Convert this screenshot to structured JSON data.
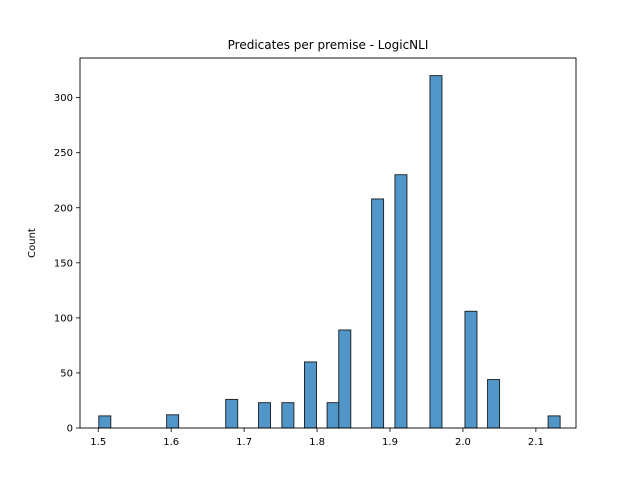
{
  "chart_data": {
    "type": "bar",
    "title": "Predicates per premise - LogicNLI",
    "xlabel": "",
    "ylabel": "Count",
    "xlim": [
      1.475,
      2.155
    ],
    "ylim": [
      0,
      336
    ],
    "xticks": [
      1.5,
      1.6,
      1.7,
      1.8,
      1.9,
      2.0,
      2.1
    ],
    "xtick_labels": [
      "1.5",
      "1.6",
      "1.7",
      "1.8",
      "1.9",
      "2.0",
      "2.1"
    ],
    "yticks": [
      0,
      50,
      100,
      150,
      200,
      250,
      300
    ],
    "ytick_labels": [
      "0",
      "50",
      "100",
      "150",
      "200",
      "250",
      "300"
    ],
    "bin_width": 0.0165,
    "bars": [
      {
        "x": 1.509,
        "value": 11
      },
      {
        "x": 1.602,
        "value": 12
      },
      {
        "x": 1.683,
        "value": 26
      },
      {
        "x": 1.728,
        "value": 23
      },
      {
        "x": 1.76,
        "value": 23
      },
      {
        "x": 1.791,
        "value": 60
      },
      {
        "x": 1.822,
        "value": 23
      },
      {
        "x": 1.838,
        "value": 89
      },
      {
        "x": 1.883,
        "value": 208
      },
      {
        "x": 1.915,
        "value": 230
      },
      {
        "x": 1.963,
        "value": 320
      },
      {
        "x": 2.011,
        "value": 106
      },
      {
        "x": 2.042,
        "value": 44
      },
      {
        "x": 2.125,
        "value": 11
      }
    ],
    "bar_color": "#5196c9",
    "edge_color": "#1a1a1a",
    "grid": false
  }
}
